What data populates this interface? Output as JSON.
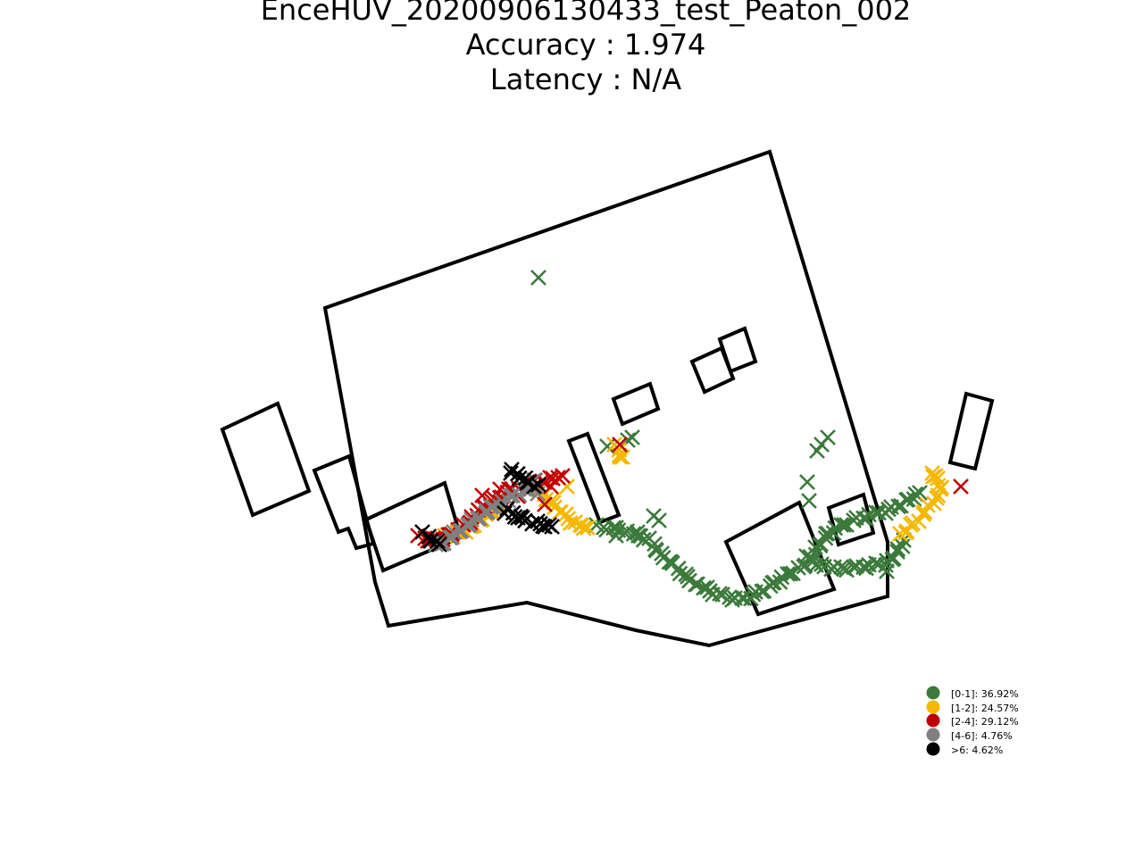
{
  "chart_data": {
    "type": "scatter",
    "title": [
      "EnceHUV_20200906130433_test_Peaton_002",
      "Accuracy : 1.974",
      "Latency : N/A"
    ],
    "axes_visible": false,
    "grid": false,
    "marker": "x",
    "legend_position": "bottom-right",
    "colors": {
      "g01": "#3b7a3b",
      "g12": "#f5b800",
      "g24": "#c00000",
      "g46": "#808080",
      "g6p": "#000000"
    },
    "legend": [
      {
        "key": "g01",
        "label": "[0-1]: 36.92%"
      },
      {
        "key": "g12",
        "label": "[1-2]: 24.57%"
      },
      {
        "key": "g24",
        "label": "[2-4]: 29.12%"
      },
      {
        "key": "g46",
        "label": "[4-6]: 4.76%"
      },
      {
        "key": "g6p",
        "label": ">6: 4.62%"
      }
    ],
    "outlines": [
      [
        [
          364,
          345
        ],
        [
          862,
          170
        ],
        [
          994,
          607
        ],
        [
          994,
          668
        ],
        [
          794,
          723
        ],
        [
          712,
          706
        ],
        [
          590,
          675
        ],
        [
          435,
          701
        ],
        [
          420,
          652
        ]
      ],
      [
        [
          249,
          481
        ],
        [
          311,
          452
        ],
        [
          346,
          550
        ],
        [
          283,
          577
        ]
      ],
      [
        [
          352,
          527
        ],
        [
          391,
          511
        ],
        [
          418,
          609
        ],
        [
          399,
          614
        ],
        [
          390,
          592
        ],
        [
          379,
          596
        ]
      ],
      [
        [
          410,
          582
        ],
        [
          498,
          541
        ],
        [
          516,
          602
        ],
        [
          429,
          639
        ]
      ],
      [
        [
          637,
          494
        ],
        [
          658,
          486
        ],
        [
          693,
          577
        ],
        [
          672,
          585
        ]
      ],
      [
        [
          687,
          447
        ],
        [
          728,
          430
        ],
        [
          737,
          458
        ],
        [
          697,
          475
        ]
      ],
      [
        [
          775,
          405
        ],
        [
          808,
          390
        ],
        [
          821,
          424
        ],
        [
          789,
          439
        ]
      ],
      [
        [
          806,
          380
        ],
        [
          834,
          368
        ],
        [
          846,
          405
        ],
        [
          818,
          416
        ]
      ],
      [
        [
          813,
          607
        ],
        [
          895,
          563
        ],
        [
          934,
          660
        ],
        [
          849,
          688
        ]
      ],
      [
        [
          928,
          569
        ],
        [
          967,
          554
        ],
        [
          978,
          597
        ],
        [
          939,
          610
        ]
      ],
      [
        [
          1082,
          441
        ],
        [
          1111,
          449
        ],
        [
          1092,
          525
        ],
        [
          1064,
          518
        ]
      ]
    ],
    "paths": {
      "g01": [
        [
          [
            670,
            590
          ],
          [
            690,
            593
          ],
          [
            712,
            598
          ],
          [
            728,
            605
          ],
          [
            740,
            622
          ],
          [
            755,
            633
          ],
          [
            770,
            648
          ],
          [
            790,
            660
          ],
          [
            810,
            668
          ],
          [
            830,
            672
          ],
          [
            848,
            665
          ],
          [
            865,
            655
          ],
          [
            880,
            645
          ],
          [
            895,
            638
          ],
          [
            905,
            628
          ],
          [
            915,
            615
          ],
          [
            925,
            600
          ],
          [
            940,
            590
          ],
          [
            960,
            582
          ],
          [
            980,
            576
          ],
          [
            1000,
            570
          ],
          [
            1015,
            562
          ],
          [
            1030,
            552
          ]
        ],
        [
          [
            905,
            625
          ],
          [
            920,
            634
          ],
          [
            940,
            637
          ],
          [
            960,
            636
          ],
          [
            980,
            633
          ],
          [
            995,
            630
          ],
          [
            1005,
            620
          ],
          [
            1012,
            605
          ]
        ]
      ],
      "g12": [
        [
          [
            605,
            550
          ],
          [
            620,
            565
          ],
          [
            632,
            578
          ],
          [
            645,
            587
          ],
          [
            658,
            591
          ]
        ],
        [
          [
            1010,
            600
          ],
          [
            1020,
            590
          ],
          [
            1032,
            578
          ],
          [
            1040,
            568
          ],
          [
            1048,
            560
          ],
          [
            1055,
            550
          ],
          [
            1050,
            538
          ],
          [
            1044,
            530
          ]
        ],
        [
          [
            500,
            602
          ],
          [
            512,
            598
          ],
          [
            525,
            592
          ],
          [
            545,
            578
          ],
          [
            560,
            565
          ]
        ],
        [
          [
            690,
            500
          ],
          [
            697,
            512
          ]
        ]
      ],
      "g24": [
        [
          [
            470,
            602
          ],
          [
            485,
            605
          ],
          [
            500,
            601
          ],
          [
            520,
            590
          ],
          [
            540,
            570
          ],
          [
            555,
            560
          ],
          [
            570,
            550
          ],
          [
            585,
            543
          ],
          [
            600,
            540
          ],
          [
            615,
            537
          ],
          [
            625,
            535
          ]
        ]
      ],
      "g46": [
        [
          [
            490,
            612
          ],
          [
            550,
            570
          ],
          [
            585,
            550
          ],
          [
            600,
            545
          ]
        ]
      ],
      "g6p": [
        [
          [
            475,
            598
          ],
          [
            492,
            610
          ]
        ],
        [
          [
            570,
            572
          ],
          [
            585,
            582
          ],
          [
            600,
            586
          ],
          [
            615,
            588
          ]
        ],
        [
          [
            575,
            528
          ],
          [
            598,
            545
          ]
        ]
      ]
    },
    "points": {
      "g01": [
        [
          603,
          311
        ],
        [
          680,
          500
        ],
        [
          690,
          600
        ],
        [
          703,
          493
        ],
        [
          708,
          490
        ],
        [
          715,
          600
        ],
        [
          732,
          578
        ],
        [
          738,
          583
        ],
        [
          904,
          540
        ],
        [
          906,
          561
        ],
        [
          915,
          505
        ],
        [
          920,
          498
        ],
        [
          927,
          490
        ],
        [
          993,
          640
        ]
      ],
      "g12": [
        [
          635,
          545
        ],
        [
          650,
          588
        ],
        [
          694,
          512
        ],
        [
          1048,
          533
        ]
      ],
      "g24": [
        [
          540,
          555
        ],
        [
          560,
          548
        ],
        [
          580,
          556
        ],
        [
          610,
          565
        ],
        [
          617,
          545
        ],
        [
          630,
          533
        ],
        [
          694,
          498
        ],
        [
          1076,
          545
        ]
      ],
      "g46": [
        [
          545,
          572
        ],
        [
          598,
          538
        ],
        [
          602,
          553
        ],
        [
          496,
          608
        ]
      ],
      "g6p": [
        [
          580,
          580
        ],
        [
          610,
          590
        ],
        [
          618,
          590
        ],
        [
          565,
          575
        ],
        [
          572,
          530
        ],
        [
          603,
          543
        ],
        [
          482,
          606
        ]
      ]
    }
  }
}
